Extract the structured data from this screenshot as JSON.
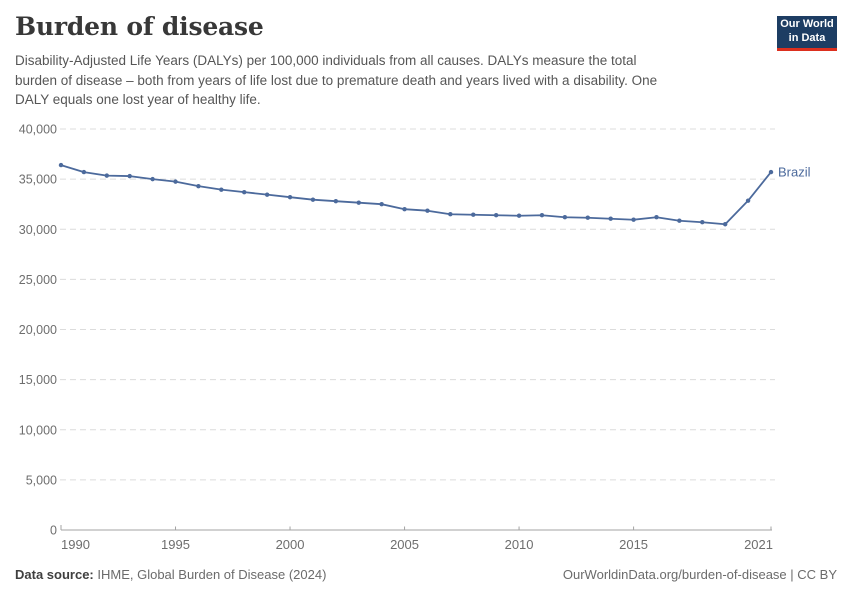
{
  "header": {
    "title": "Burden of disease",
    "subtitle_lines": [
      "Disability-Adjusted Life Years (DALYs) per 100,000 individuals from all causes. DALYs measure the total",
      "burden of disease – both from years of life lost due to premature death and years lived with a disability. One",
      "DALY equals one lost year of healthy life."
    ],
    "logo": {
      "line1": "Our World",
      "line2": "in Data"
    }
  },
  "chart_data": {
    "type": "line",
    "title": "Burden of disease",
    "xlabel": "",
    "ylabel": "",
    "xlim": [
      1990,
      2021
    ],
    "ylim": [
      0,
      40000
    ],
    "xticks": [
      1990,
      1995,
      2000,
      2005,
      2010,
      2015,
      2021
    ],
    "yticks": [
      0,
      5000,
      10000,
      15000,
      20000,
      25000,
      30000,
      35000,
      40000
    ],
    "ytick_labels": [
      "0",
      "5,000",
      "10,000",
      "15,000",
      "20,000",
      "25,000",
      "30,000",
      "35,000",
      "40,000"
    ],
    "grid": "horizontal-dashed",
    "legend_position": "end-of-line-label",
    "x": [
      1990,
      1991,
      1992,
      1993,
      1994,
      1995,
      1996,
      1997,
      1998,
      1999,
      2000,
      2001,
      2002,
      2003,
      2004,
      2005,
      2006,
      2007,
      2008,
      2009,
      2010,
      2011,
      2012,
      2013,
      2014,
      2015,
      2016,
      2017,
      2018,
      2019,
      2020,
      2021
    ],
    "series": [
      {
        "name": "Brazil",
        "values": [
          36400,
          35700,
          35350,
          35300,
          35000,
          34750,
          34300,
          33950,
          33700,
          33450,
          33200,
          32950,
          32800,
          32650,
          32500,
          32000,
          31850,
          31500,
          31450,
          31400,
          31350,
          31400,
          31200,
          31150,
          31050,
          30950,
          31200,
          30850,
          30700,
          30500,
          32850,
          35700
        ]
      }
    ]
  },
  "footer": {
    "source_label": "Data source:",
    "source_text": " IHME, Global Burden of Disease (2024)",
    "link_text": "OurWorldinData.org/burden-of-disease",
    "license_text": " | CC BY"
  },
  "colors": {
    "series": "#4C6A9C",
    "logo-bg": "#1d3d63",
    "logo-accent": "#dc2f1e",
    "grid": "#dcdcdc",
    "axis": "#a3a3a3",
    "tick-label": "#6e6e6e",
    "title": "#383838",
    "subtitle": "#565656",
    "footer": "#6b6b6b",
    "footer-label": "#3f3f3f"
  }
}
